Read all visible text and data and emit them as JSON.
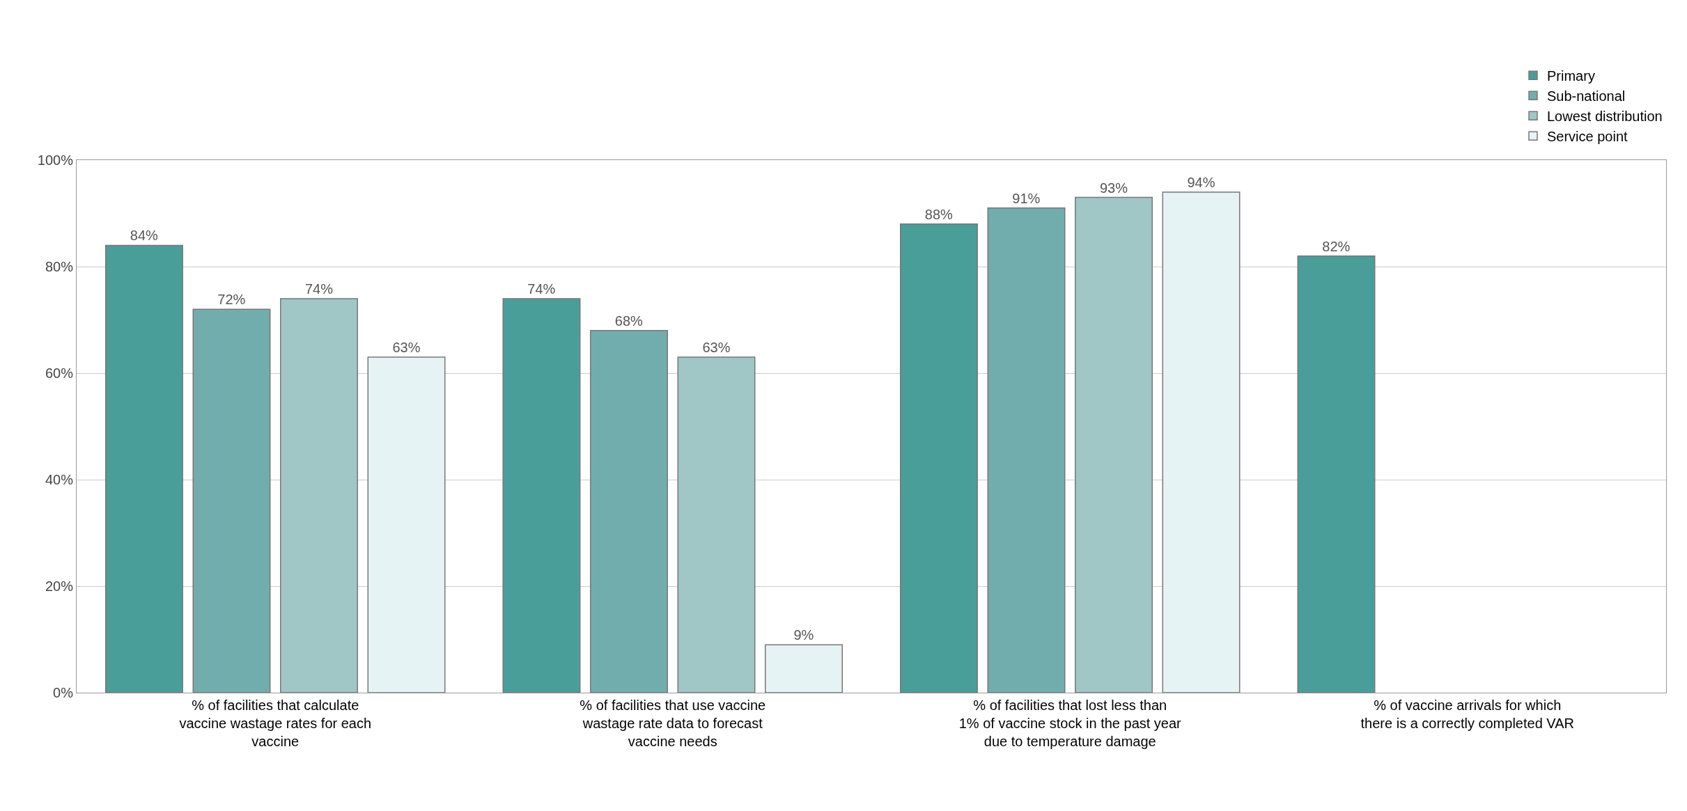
{
  "chart_data": {
    "type": "bar",
    "categories": [
      "% of facilities that calculate vaccine wastage rates for each vaccine",
      "% of facilities that use vaccine wastage rate data to forecast vaccine needs",
      "% of facilities that lost less than 1% of vaccine stock in the past year due to temperature damage",
      "% of vaccine arrivals for which there is a correctly completed VAR"
    ],
    "series": [
      {
        "name": "Primary",
        "color": "#4a9e9a",
        "values": [
          84,
          74,
          88,
          82
        ],
        "value_labels": [
          "84%",
          "74%",
          "88%",
          "82%"
        ]
      },
      {
        "name": "Sub-national",
        "color": "#72adad",
        "values": [
          72,
          68,
          91,
          null
        ],
        "value_labels": [
          "72%",
          "68%",
          "91%",
          null
        ]
      },
      {
        "name": "Lowest distribution",
        "color": "#a0c6c6",
        "values": [
          74,
          63,
          93,
          null
        ],
        "value_labels": [
          "74%",
          "63%",
          "93%",
          null
        ]
      },
      {
        "name": "Service point",
        "color": "#e6f3f4",
        "values": [
          63,
          9,
          94,
          null
        ],
        "value_labels": [
          "63%",
          "9%",
          "94%",
          null
        ]
      }
    ],
    "ylim": [
      0,
      100
    ],
    "yticks": [
      {
        "value": 0,
        "label": "0%"
      },
      {
        "value": 20,
        "label": "20%"
      },
      {
        "value": 40,
        "label": "40%"
      },
      {
        "value": 60,
        "label": "60%"
      },
      {
        "value": 80,
        "label": "80%"
      },
      {
        "value": 100,
        "label": "100%"
      }
    ],
    "grid": "y",
    "legend": "top right"
  }
}
